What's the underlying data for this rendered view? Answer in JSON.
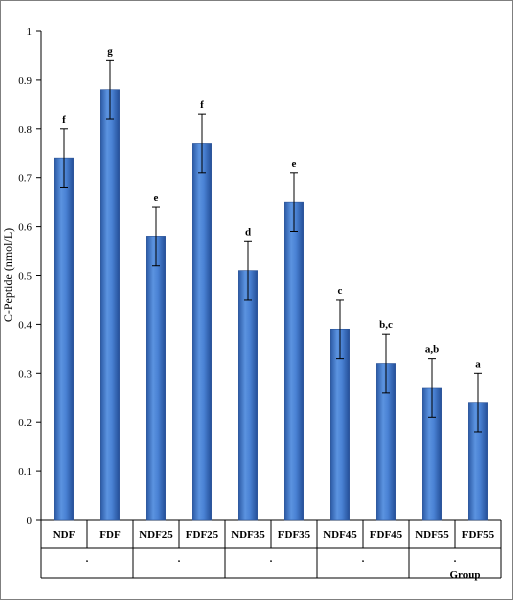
{
  "chart_data": {
    "type": "bar",
    "ylabel": "C-Peptide (nmol/L)",
    "xlabel": "Group",
    "ylim": [
      0,
      1
    ],
    "yticks": [
      0,
      0.1,
      0.2,
      0.3,
      0.4,
      0.5,
      0.6,
      0.7,
      0.8,
      0.9,
      1
    ],
    "categories": [
      "NDF",
      "FDF",
      "NDF25",
      "FDF25",
      "NDF35",
      "FDF35",
      "NDF45",
      "FDF45",
      "NDF55",
      "FDF55"
    ],
    "values": [
      0.74,
      0.88,
      0.58,
      0.77,
      0.51,
      0.65,
      0.39,
      0.32,
      0.27,
      0.24
    ],
    "errors": [
      0.06,
      0.06,
      0.06,
      0.06,
      0.06,
      0.06,
      0.06,
      0.06,
      0.06,
      0.06
    ],
    "significance_labels": [
      "f",
      "g",
      "e",
      "f",
      "d",
      "e",
      "c",
      "b,c",
      "a,b",
      "a"
    ],
    "group_labels": [
      ".",
      ".",
      ".",
      ".",
      "."
    ],
    "bar_color": "#3f76c6",
    "grid": false
  }
}
